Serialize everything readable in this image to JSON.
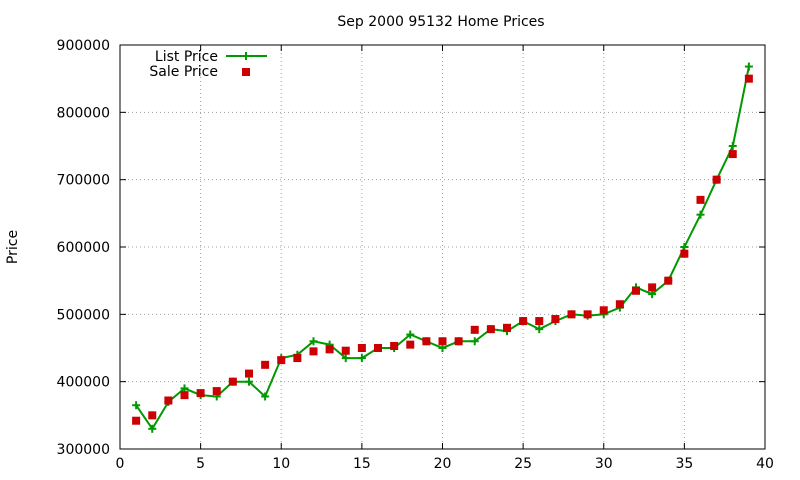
{
  "chart_data": {
    "type": "line",
    "title": "Sep 2000 95132 Home Prices",
    "xlabel": "",
    "ylabel": "Price",
    "xlim": [
      0,
      40
    ],
    "ylim": [
      300000,
      900000
    ],
    "x_ticks": [
      0,
      5,
      10,
      15,
      20,
      25,
      30,
      35,
      40
    ],
    "y_ticks": [
      300000,
      400000,
      500000,
      600000,
      700000,
      800000,
      900000
    ],
    "grid": true,
    "legend_position": "top-left",
    "series": [
      {
        "name": "List Price",
        "style": "line with plus markers",
        "color": "#009900",
        "x": [
          1,
          2,
          3,
          4,
          5,
          6,
          7,
          8,
          9,
          10,
          11,
          12,
          13,
          14,
          15,
          16,
          17,
          18,
          19,
          20,
          21,
          22,
          23,
          24,
          25,
          26,
          27,
          28,
          29,
          30,
          31,
          32,
          33,
          34,
          35,
          36,
          37,
          38,
          39
        ],
        "values": [
          365000,
          330000,
          370000,
          390000,
          380000,
          378000,
          400000,
          400000,
          378000,
          435000,
          440000,
          460000,
          455000,
          435000,
          435000,
          450000,
          450000,
          470000,
          460000,
          450000,
          460000,
          460000,
          478000,
          475000,
          490000,
          478000,
          490000,
          500000,
          498000,
          500000,
          510000,
          540000,
          530000,
          550000,
          600000,
          648000,
          700000,
          750000,
          868000
        ]
      },
      {
        "name": "Sale Price",
        "style": "square points",
        "color": "#cc0000",
        "x": [
          1,
          2,
          3,
          4,
          5,
          6,
          7,
          8,
          9,
          10,
          11,
          12,
          13,
          14,
          15,
          16,
          17,
          18,
          19,
          20,
          21,
          22,
          23,
          24,
          25,
          26,
          27,
          28,
          29,
          30,
          31,
          32,
          33,
          34,
          35,
          36,
          37,
          38,
          39
        ],
        "values": [
          342000,
          350000,
          372000,
          380000,
          383000,
          386000,
          400000,
          412000,
          425000,
          432000,
          435000,
          445000,
          448000,
          446000,
          450000,
          450000,
          453000,
          455000,
          460000,
          460000,
          460000,
          477000,
          478000,
          480000,
          490000,
          490000,
          493000,
          500000,
          500000,
          506000,
          515000,
          535000,
          540000,
          550000,
          590000,
          670000,
          700000,
          738000,
          850000
        ]
      }
    ]
  }
}
